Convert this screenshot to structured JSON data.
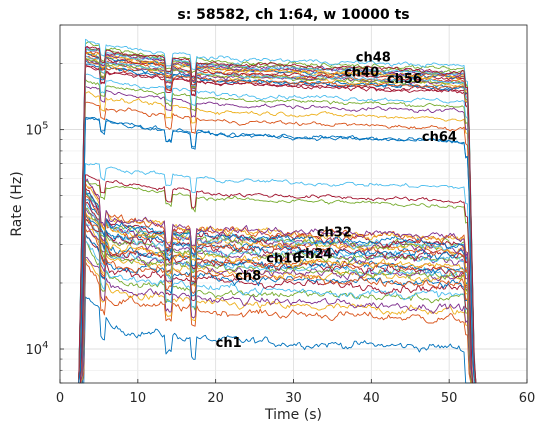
{
  "chart_data": {
    "type": "line",
    "title": "s: 58582, ch 1:64, w 10000 ts",
    "xlabel": "Time (s)",
    "ylabel": "Rate (Hz)",
    "xlim": [
      0,
      60
    ],
    "ylim": [
      7000,
      300000
    ],
    "yscale": "log",
    "grid": true,
    "x_ticks": [
      "0",
      "10",
      "20",
      "30",
      "40",
      "50",
      "60"
    ],
    "y_ticks": [
      {
        "base": "10",
        "exp": "4"
      },
      {
        "base": "10",
        "exp": "5"
      }
    ],
    "onset_time": 3.5,
    "offset_time": 52.5,
    "series_count": 64,
    "annotations": [
      {
        "text": "ch48",
        "x": 38,
        "y": 205000
      },
      {
        "text": "ch40",
        "x": 36.5,
        "y": 175000
      },
      {
        "text": "ch56",
        "x": 42,
        "y": 163000
      },
      {
        "text": "ch64",
        "x": 46.5,
        "y": 89000
      },
      {
        "text": "ch32",
        "x": 33,
        "y": 32500
      },
      {
        "text": "ch24",
        "x": 30.5,
        "y": 26000
      },
      {
        "text": "ch16",
        "x": 26.5,
        "y": 24800
      },
      {
        "text": "ch8",
        "x": 22.5,
        "y": 20600
      },
      {
        "text": "ch1",
        "x": 20,
        "y": 10200
      }
    ]
  }
}
